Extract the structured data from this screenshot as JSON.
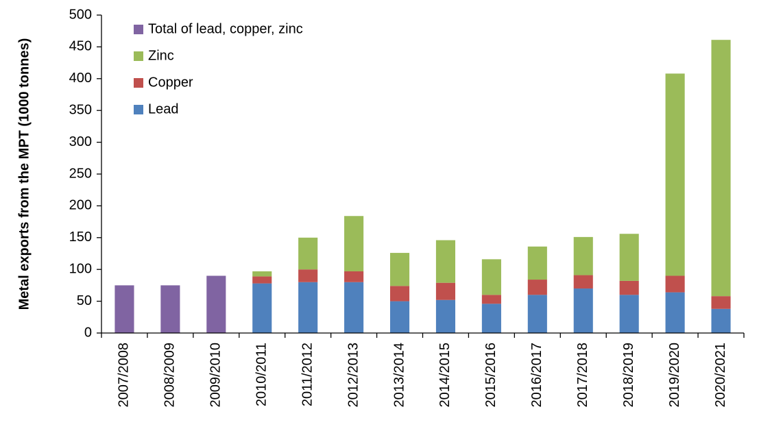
{
  "chart_data": {
    "type": "stacked_bar",
    "y_label": "Metal exports from the MPT (1000 tonnes)",
    "categories": [
      "2007/2008",
      "2008/2009",
      "2009/2010",
      "2010/2011",
      "2011/2012",
      "2012/2013",
      "2013/2014",
      "2014/2015",
      "2015/2016",
      "2016/2017",
      "2017/2018",
      "2018/2019",
      "2019/2020",
      "2020/2021"
    ],
    "series": [
      {
        "name": "Lead",
        "color": "#4f81bd",
        "values": [
          null,
          null,
          null,
          78,
          80,
          80,
          50,
          52,
          46,
          60,
          70,
          60,
          64,
          38
        ]
      },
      {
        "name": "Copper",
        "color": "#c0504d",
        "values": [
          null,
          null,
          null,
          11,
          20,
          17,
          24,
          27,
          14,
          24,
          21,
          22,
          26,
          20
        ]
      },
      {
        "name": "Zinc",
        "color": "#9bbb59",
        "values": [
          null,
          null,
          null,
          8,
          50,
          87,
          52,
          67,
          56,
          52,
          60,
          74,
          318,
          403
        ]
      },
      {
        "name": "Total of lead, copper, zinc",
        "color": "#8064a2",
        "values": [
          75,
          75,
          90,
          null,
          null,
          null,
          null,
          null,
          null,
          null,
          null,
          null,
          null,
          null
        ]
      }
    ],
    "ylim": [
      0,
      500
    ],
    "yticks": [
      0,
      50,
      100,
      150,
      200,
      250,
      300,
      350,
      400,
      450,
      500
    ],
    "grid": false,
    "legend": "upper-left"
  }
}
